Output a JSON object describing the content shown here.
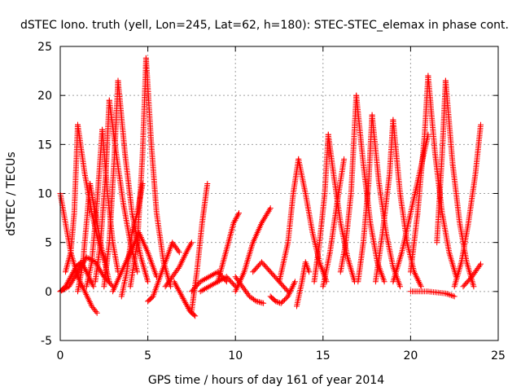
{
  "chart_data": {
    "type": "scatter",
    "title": "dSTEC Iono. truth (yell, Lon=245, Lat=62, h=180): STEC-STEC_elemax in phase cont.",
    "xlabel": "GPS time / hours of day 161 of year 2014",
    "ylabel": "dSTEC  / TECUs",
    "xlim": [
      0,
      25
    ],
    "ylim": [
      -5,
      25
    ],
    "xticks": [
      0,
      5,
      10,
      15,
      20,
      25
    ],
    "yticks": [
      -5,
      0,
      5,
      10,
      15,
      20,
      25
    ],
    "xtick_labels": [
      "0",
      "5",
      "10",
      "15",
      "20",
      "25"
    ],
    "ytick_labels": [
      "-5",
      "0",
      "5",
      "10",
      "15",
      "20",
      "25"
    ],
    "grid": true,
    "marker": "plus",
    "color": "#ff0000",
    "series": [
      {
        "x": [
          0.0,
          0.3,
          0.6,
          1.0,
          1.4,
          1.8,
          2.1
        ],
        "y": [
          10.0,
          7.0,
          4.0,
          1.5,
          0.0,
          -1.5,
          -2.2
        ]
      },
      {
        "x": [
          0.0,
          0.3,
          0.6,
          0.9,
          1.2,
          1.5,
          1.9
        ],
        "y": [
          0.0,
          0.5,
          1.5,
          2.5,
          3.0,
          2.0,
          0.5
        ]
      },
      {
        "x": [
          0.0,
          0.5,
          1.0,
          1.5,
          2.0,
          2.5,
          3.0
        ],
        "y": [
          0.0,
          0.5,
          2.0,
          3.5,
          3.0,
          1.5,
          0.5
        ]
      },
      {
        "x": [
          0.3,
          0.6,
          0.8,
          1.0
        ],
        "y": [
          2.0,
          4.0,
          8.0,
          17.0
        ]
      },
      {
        "x": [
          1.0,
          1.4,
          1.8,
          2.2,
          2.6
        ],
        "y": [
          17.0,
          12.0,
          8.0,
          5.0,
          3.0
        ]
      },
      {
        "x": [
          1.0,
          1.3,
          1.5,
          1.7
        ],
        "y": [
          0.0,
          3.0,
          7.0,
          11.0
        ]
      },
      {
        "x": [
          1.7,
          2.0,
          2.4,
          2.8
        ],
        "y": [
          11.0,
          8.0,
          4.0,
          1.0
        ]
      },
      {
        "x": [
          1.5,
          1.8,
          2.1,
          2.4
        ],
        "y": [
          0.5,
          3.0,
          9.0,
          16.5
        ]
      },
      {
        "x": [
          2.4,
          2.7,
          3.0,
          3.3
        ],
        "y": [
          16.5,
          10.0,
          5.0,
          2.0
        ]
      },
      {
        "x": [
          2.0,
          2.3,
          2.6,
          2.8
        ],
        "y": [
          1.0,
          5.0,
          12.0,
          19.5
        ]
      },
      {
        "x": [
          2.8,
          3.2,
          3.6,
          4.0,
          4.4
        ],
        "y": [
          19.5,
          14.0,
          9.0,
          5.0,
          2.0
        ]
      },
      {
        "x": [
          2.5,
          2.8,
          3.1,
          3.3
        ],
        "y": [
          0.5,
          5.0,
          14.0,
          21.5
        ]
      },
      {
        "x": [
          3.3,
          3.7,
          4.1,
          4.6,
          5.0
        ],
        "y": [
          21.5,
          14.0,
          8.0,
          3.5,
          1.0
        ]
      },
      {
        "x": [
          3.0,
          3.5,
          4.0,
          4.5,
          5.0,
          5.5
        ],
        "y": [
          0.0,
          2.0,
          4.0,
          6.0,
          4.0,
          1.5
        ]
      },
      {
        "x": [
          3.5,
          3.8,
          4.1,
          4.4,
          4.7
        ],
        "y": [
          -0.5,
          2.0,
          6.0,
          8.0,
          11.0
        ]
      },
      {
        "x": [
          4.0,
          4.4,
          4.7,
          4.9
        ],
        "y": [
          0.5,
          5.0,
          14.0,
          23.8
        ]
      },
      {
        "x": [
          4.9,
          5.2,
          5.5,
          5.9,
          6.3
        ],
        "y": [
          23.8,
          15.0,
          8.0,
          3.0,
          0.5
        ]
      },
      {
        "x": [
          5.0,
          5.3,
          5.6,
          6.0,
          6.4,
          6.8
        ],
        "y": [
          -1.0,
          -0.5,
          1.0,
          3.0,
          5.0,
          4.0
        ]
      },
      {
        "x": [
          6.0,
          6.4,
          6.8,
          7.2,
          7.5
        ],
        "y": [
          0.5,
          1.5,
          2.5,
          4.0,
          5.0
        ]
      },
      {
        "x": [
          6.5,
          6.8,
          7.1,
          7.4,
          7.7
        ],
        "y": [
          1.0,
          0.0,
          -1.0,
          -2.0,
          -2.5
        ]
      },
      {
        "x": [
          7.5,
          7.8,
          8.1,
          8.4
        ],
        "y": [
          -2.0,
          2.0,
          7.0,
          11.0
        ]
      },
      {
        "x": [
          7.5,
          8.0,
          8.5,
          9.0,
          9.5
        ],
        "y": [
          0.0,
          1.0,
          1.5,
          2.0,
          1.0
        ]
      },
      {
        "x": [
          8.0,
          8.5,
          9.0,
          9.5,
          10.0
        ],
        "y": [
          0.0,
          0.5,
          1.0,
          1.5,
          0.5
        ]
      },
      {
        "x": [
          9.0,
          9.3,
          9.6,
          9.9,
          10.2
        ],
        "y": [
          1.0,
          3.0,
          5.0,
          7.0,
          8.0
        ]
      },
      {
        "x": [
          10.0,
          10.5,
          11.0,
          11.5,
          12.0
        ],
        "y": [
          0.0,
          2.0,
          5.0,
          7.0,
          8.5
        ]
      },
      {
        "x": [
          10.0,
          10.4,
          10.8,
          11.2,
          11.6
        ],
        "y": [
          1.5,
          0.5,
          -0.5,
          -1.0,
          -1.2
        ]
      },
      {
        "x": [
          11.0,
          11.5,
          12.0,
          12.5,
          13.0
        ],
        "y": [
          2.0,
          3.0,
          2.0,
          1.0,
          0.0
        ]
      },
      {
        "x": [
          12.0,
          12.3,
          12.6,
          13.0,
          13.4
        ],
        "y": [
          -0.5,
          -1.0,
          -1.2,
          -0.5,
          1.0
        ]
      },
      {
        "x": [
          12.5,
          13.0,
          13.3,
          13.6
        ],
        "y": [
          1.0,
          5.0,
          10.0,
          13.5
        ]
      },
      {
        "x": [
          13.6,
          14.0,
          14.4,
          14.8,
          15.2
        ],
        "y": [
          13.5,
          10.0,
          6.0,
          3.0,
          1.0
        ]
      },
      {
        "x": [
          13.5,
          13.8,
          14.0,
          14.2
        ],
        "y": [
          -1.5,
          1.0,
          3.0,
          2.0
        ]
      },
      {
        "x": [
          14.5,
          14.8,
          15.1,
          15.3
        ],
        "y": [
          1.0,
          5.0,
          10.0,
          16.0
        ]
      },
      {
        "x": [
          15.3,
          15.6,
          16.0,
          16.4,
          16.8
        ],
        "y": [
          16.0,
          12.0,
          7.0,
          3.5,
          1.0
        ]
      },
      {
        "x": [
          15.0,
          15.4,
          15.8,
          16.2
        ],
        "y": [
          0.5,
          4.0,
          9.0,
          13.5
        ]
      },
      {
        "x": [
          16.0,
          16.3,
          16.6,
          16.9
        ],
        "y": [
          2.0,
          5.0,
          10.0,
          20.0
        ]
      },
      {
        "x": [
          16.9,
          17.3,
          17.7,
          18.1,
          18.5
        ],
        "y": [
          20.0,
          13.0,
          7.0,
          3.0,
          1.0
        ]
      },
      {
        "x": [
          17.0,
          17.3,
          17.6,
          17.8
        ],
        "y": [
          1.0,
          5.0,
          11.0,
          18.0
        ]
      },
      {
        "x": [
          17.8,
          18.2,
          18.6,
          19.0,
          19.4
        ],
        "y": [
          18.0,
          11.0,
          6.0,
          2.5,
          0.5
        ]
      },
      {
        "x": [
          18.0,
          18.4,
          18.8,
          19.0
        ],
        "y": [
          1.0,
          6.0,
          12.0,
          17.5
        ]
      },
      {
        "x": [
          19.0,
          19.4,
          19.8,
          20.2,
          20.6
        ],
        "y": [
          17.5,
          10.0,
          5.0,
          2.0,
          0.5
        ]
      },
      {
        "x": [
          19.0,
          19.5,
          20.0,
          20.5,
          21.0
        ],
        "y": [
          1.0,
          4.0,
          8.0,
          12.0,
          16.0
        ]
      },
      {
        "x": [
          20.0,
          20.4,
          20.8,
          21.0
        ],
        "y": [
          2.0,
          8.0,
          16.0,
          22.0
        ]
      },
      {
        "x": [
          21.0,
          21.4,
          21.8,
          22.2,
          22.6
        ],
        "y": [
          22.0,
          14.0,
          8.0,
          4.0,
          1.5
        ]
      },
      {
        "x": [
          21.5,
          21.8,
          22.0
        ],
        "y": [
          5.0,
          14.0,
          21.5
        ]
      },
      {
        "x": [
          22.0,
          22.4,
          22.8,
          23.2,
          23.6
        ],
        "y": [
          21.5,
          13.0,
          7.0,
          3.0,
          0.5
        ]
      },
      {
        "x": [
          22.5,
          22.9,
          23.3,
          23.7,
          24.0
        ],
        "y": [
          0.5,
          3.0,
          7.0,
          12.0,
          17.0
        ]
      },
      {
        "x": [
          20.0,
          21.0,
          22.0,
          22.5
        ],
        "y": [
          0.0,
          0.0,
          -0.2,
          -0.5
        ]
      },
      {
        "x": [
          23.0,
          23.5,
          24.0
        ],
        "y": [
          0.5,
          1.5,
          2.8
        ]
      }
    ]
  }
}
